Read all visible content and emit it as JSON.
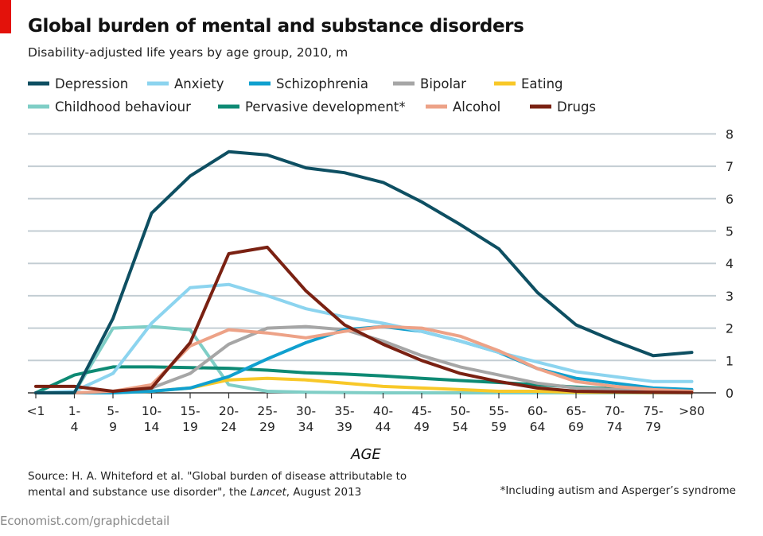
{
  "brand_color": "#e3120b",
  "title": "Global burden of mental and substance disorders",
  "subtitle": "Disability-adjusted life years by age group, 2010, m",
  "source": {
    "line1": "Source: H. A. Whiteford et al. \"Global burden of disease attributable to",
    "line2_pre": "mental and substance use disorder\", the ",
    "line2_em": "Lancet",
    "line2_post": ", August 2013"
  },
  "footnote": "*Including autism and Asperger’s syndrome",
  "credit": "Economist.com/graphicdetail",
  "chart_data": {
    "type": "line",
    "title": "Global burden of mental and substance disorders",
    "subtitle": "Disability-adjusted life years by age group, 2010, m",
    "xlabel": "AGE",
    "ylabel": "",
    "ylim": [
      0,
      8
    ],
    "yticks": [
      0,
      1,
      2,
      3,
      4,
      5,
      6,
      7,
      8
    ],
    "grid": true,
    "legend_position": "top",
    "categories": [
      [
        "<1"
      ],
      [
        "1-",
        "4"
      ],
      [
        "5-",
        "9"
      ],
      [
        "10-",
        "14"
      ],
      [
        "15-",
        "19"
      ],
      [
        "20-",
        "24"
      ],
      [
        "25-",
        "29"
      ],
      [
        "30-",
        "34"
      ],
      [
        "35-",
        "39"
      ],
      [
        "40-",
        "44"
      ],
      [
        "45-",
        "49"
      ],
      [
        "50-",
        "54"
      ],
      [
        "55-",
        "59"
      ],
      [
        "60-",
        "64"
      ],
      [
        "65-",
        "69"
      ],
      [
        "70-",
        "74"
      ],
      [
        "75-",
        "79"
      ],
      [
        ">80"
      ]
    ],
    "series": [
      {
        "name": "Depression",
        "color": "#0e4f62",
        "values": [
          0,
          0,
          2.3,
          5.55,
          6.7,
          7.45,
          7.35,
          6.95,
          6.8,
          6.5,
          5.9,
          5.2,
          4.45,
          3.1,
          2.1,
          1.6,
          1.15,
          1.25
        ]
      },
      {
        "name": "Anxiety",
        "color": "#8cd4ef",
        "values": [
          0,
          0.05,
          0.6,
          2.15,
          3.25,
          3.35,
          3.0,
          2.6,
          2.35,
          2.15,
          1.9,
          1.6,
          1.25,
          0.95,
          0.65,
          0.5,
          0.35,
          0.35
        ]
      },
      {
        "name": "Schizophrenia",
        "color": "#10a0cf",
        "values": [
          0,
          0,
          0,
          0.05,
          0.15,
          0.5,
          1.05,
          1.55,
          1.95,
          2.05,
          1.9,
          1.6,
          1.25,
          0.75,
          0.45,
          0.3,
          0.15,
          0.1
        ]
      },
      {
        "name": "Bipolar",
        "color": "#a6a6a6",
        "values": [
          0,
          0,
          0,
          0.15,
          0.6,
          1.5,
          2.0,
          2.05,
          1.95,
          1.6,
          1.15,
          0.8,
          0.55,
          0.3,
          0.15,
          0.1,
          0.05,
          0.05
        ]
      },
      {
        "name": "Eating",
        "color": "#f8c828",
        "values": [
          0,
          0,
          0,
          0.05,
          0.15,
          0.4,
          0.45,
          0.4,
          0.3,
          0.2,
          0.15,
          0.1,
          0.05,
          0.05,
          0.02,
          0.02,
          0.01,
          0.01
        ]
      },
      {
        "name": "Childhood behaviour",
        "color": "#7fcec6",
        "values": [
          0,
          0,
          2.0,
          2.05,
          1.95,
          0.25,
          0.05,
          0.02,
          0.01,
          0,
          0,
          0,
          0,
          0,
          0,
          0,
          0,
          0
        ]
      },
      {
        "name": "Pervasive development*",
        "color": "#0e8a74",
        "values": [
          0,
          0.55,
          0.8,
          0.8,
          0.78,
          0.76,
          0.7,
          0.62,
          0.58,
          0.52,
          0.45,
          0.38,
          0.32,
          0.25,
          0.18,
          0.12,
          0.08,
          0.05
        ]
      },
      {
        "name": "Alcohol",
        "color": "#eda287",
        "values": [
          0,
          0,
          0.05,
          0.25,
          1.45,
          1.95,
          1.85,
          1.7,
          1.9,
          2.05,
          2.0,
          1.75,
          1.3,
          0.75,
          0.35,
          0.2,
          0.1,
          0.05
        ]
      },
      {
        "name": "Drugs",
        "color": "#7a2112",
        "values": [
          0.2,
          0.2,
          0.05,
          0.15,
          1.55,
          4.3,
          4.5,
          3.15,
          2.1,
          1.5,
          1.0,
          0.6,
          0.35,
          0.15,
          0.05,
          0.03,
          0.02,
          0.01
        ]
      }
    ]
  }
}
